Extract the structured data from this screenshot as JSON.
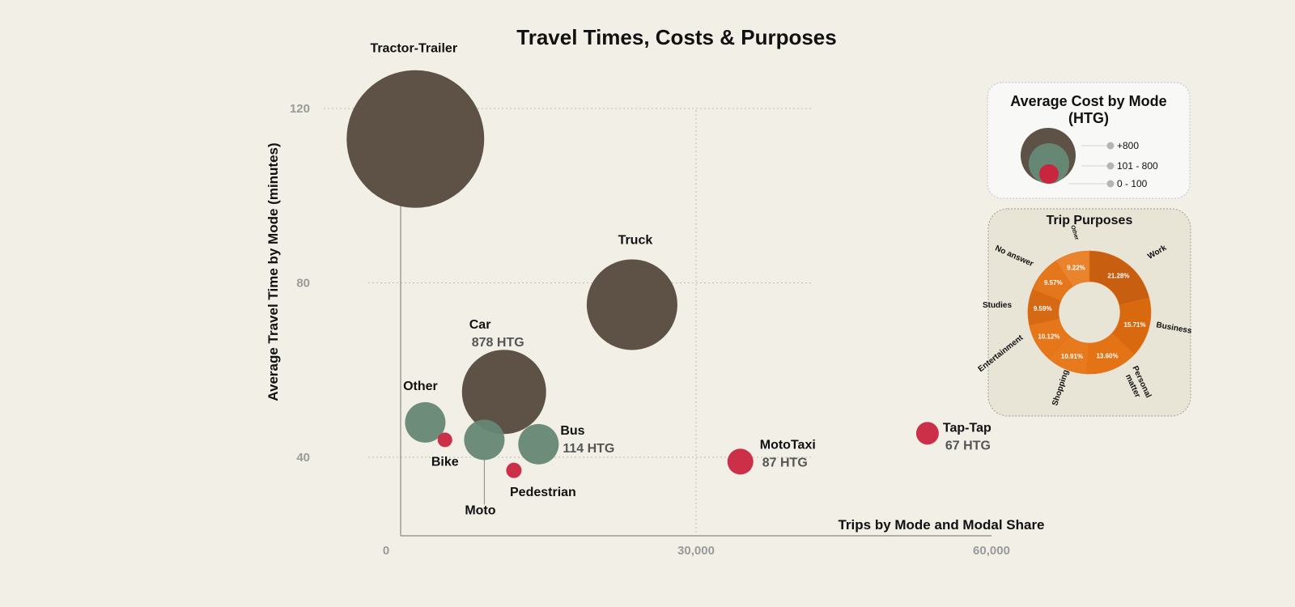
{
  "title": "Travel Times, Costs & Purposes",
  "colors": {
    "high_cost": "#5e5247",
    "mid_cost": "#658774",
    "low_cost": "#c8253f",
    "donut": [
      "#c85f10",
      "#d9690f",
      "#e47316",
      "#e87a1e",
      "#e5761a",
      "#d66a14",
      "#e4761c",
      "#e9842c",
      "#ef8d38"
    ]
  },
  "chart_data": {
    "type": "scatter",
    "xlabel": "Trips by Mode and Modal Share",
    "ylabel": "Average Travel Time by Mode   (minutes)",
    "xlim": [
      0,
      60000
    ],
    "ylim": [
      40,
      120
    ],
    "x_ticks": [
      0,
      30000,
      60000
    ],
    "x_tick_labels": [
      "0",
      "30,000",
      "60,000"
    ],
    "y_ticks": [
      40,
      80,
      120
    ],
    "y_tick_labels": [
      "40",
      "80",
      "120"
    ],
    "grid": true,
    "points": [
      {
        "label": "Tractor-Trailer",
        "cost_label": "",
        "x": 1500,
        "y": 113,
        "cost_class": "+800"
      },
      {
        "label": "Truck",
        "cost_label": "",
        "x": 23500,
        "y": 75,
        "cost_class": "+800"
      },
      {
        "label": "Car",
        "cost_label": "878 HTG",
        "x": 10500,
        "y": 55,
        "cost_class": "+800"
      },
      {
        "label": "Other",
        "cost_label": "",
        "x": 2500,
        "y": 48,
        "cost_class": "101 - 800"
      },
      {
        "label": "Bike",
        "cost_label": "",
        "x": 4500,
        "y": 44,
        "cost_class": "0 - 100"
      },
      {
        "label": "Moto",
        "cost_label": "",
        "x": 8500,
        "y": 44,
        "cost_class": "101 - 800"
      },
      {
        "label": "Bus",
        "cost_label": "114 HTG",
        "x": 14000,
        "y": 43,
        "cost_class": "101 - 800"
      },
      {
        "label": "Pedestrian",
        "cost_label": "",
        "x": 11500,
        "y": 37,
        "cost_class": "0 - 100"
      },
      {
        "label": "MotoTaxi",
        "cost_label": "87 HTG",
        "x": 34500,
        "y": 39,
        "cost_class": "0 - 100"
      },
      {
        "label": "Tap-Tap",
        "cost_label": "67 HTG",
        "x": 53500,
        "y": 45.5,
        "cost_class": "0 - 100"
      }
    ]
  },
  "cost_legend": {
    "title_line1": "Average Cost by Mode",
    "title_line2": "(HTG)",
    "items": [
      "+800",
      "101 - 800",
      "0 - 100"
    ]
  },
  "purposes": {
    "title": "Trip  Purposes",
    "type": "pie",
    "slices": [
      {
        "label": "Work",
        "value": 21.28,
        "pct_label": "21.28%"
      },
      {
        "label": "Business",
        "value": 15.71,
        "pct_label": "15.71%"
      },
      {
        "label": "Personal matter",
        "value": 13.6,
        "pct_label": "13.60%"
      },
      {
        "label": "Shopping",
        "value": 10.91,
        "pct_label": "10.91%"
      },
      {
        "label": "Entertainment",
        "value": 10.12,
        "pct_label": "10.12%"
      },
      {
        "label": "Studies",
        "value": 9.59,
        "pct_label": "9.59%"
      },
      {
        "label": "No answer",
        "value": 9.57,
        "pct_label": "9.57%"
      },
      {
        "label": "Other",
        "value": 9.22,
        "pct_label": "9.22%"
      }
    ]
  }
}
